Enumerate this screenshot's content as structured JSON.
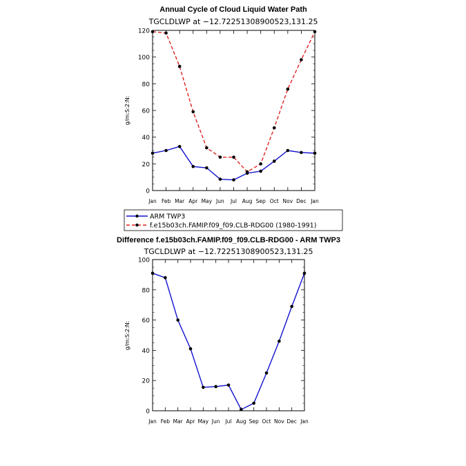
{
  "chart_data": [
    {
      "type": "line",
      "title": "Annual Cycle of Cloud Liquid Water Path",
      "subtitle": "TGCLDLWP  at  −12.72251308900523,131.25",
      "ylabel": "g/m:S:2:N:",
      "ylim": [
        0,
        120
      ],
      "yticks": [
        0,
        20,
        40,
        60,
        80,
        100,
        120
      ],
      "categories": [
        "Jan",
        "Feb",
        "Mar",
        "Apr",
        "May",
        "Jun",
        "Jul",
        "Aug",
        "Sep",
        "Oct",
        "Nov",
        "Dec",
        "Jan"
      ],
      "series": [
        {
          "name": "ARM TWP3",
          "color": "#1010d0",
          "dash": "solid",
          "values": [
            28,
            30,
            33,
            18,
            17,
            8.5,
            8,
            13,
            14.5,
            22,
            30,
            28.5,
            28
          ]
        },
        {
          "name": "f.e15b03ch.FAMIP.f09_f09.CLB-RDG00 (1980-1991)",
          "color": "#e02020",
          "dash": "dashed",
          "values": [
            119,
            118,
            93,
            59,
            32,
            25,
            25,
            14,
            20,
            47,
            76,
            98,
            119
          ]
        }
      ],
      "legend_placement": "bottom"
    },
    {
      "type": "line",
      "title": "Difference f.e15b03ch.FAMIP.f09_f09.CLB-RDG00 - ARM TWP3",
      "subtitle": "TGCLDLWP  at  −12.72251308900523,131.25",
      "ylabel": "g/m:S:2:N:",
      "ylim": [
        0,
        100
      ],
      "yticks": [
        0,
        20,
        40,
        60,
        80,
        100
      ],
      "categories": [
        "Jan",
        "Feb",
        "Mar",
        "Apr",
        "May",
        "Jun",
        "Jul",
        "Aug",
        "Sep",
        "Oct",
        "Nov",
        "Dec",
        "Jan"
      ],
      "series": [
        {
          "color": "#1010d0",
          "dash": "solid",
          "values": [
            91,
            88,
            60,
            41,
            15.5,
            16,
            17,
            0.8,
            5,
            25,
            46,
            69,
            91
          ]
        }
      ]
    }
  ]
}
